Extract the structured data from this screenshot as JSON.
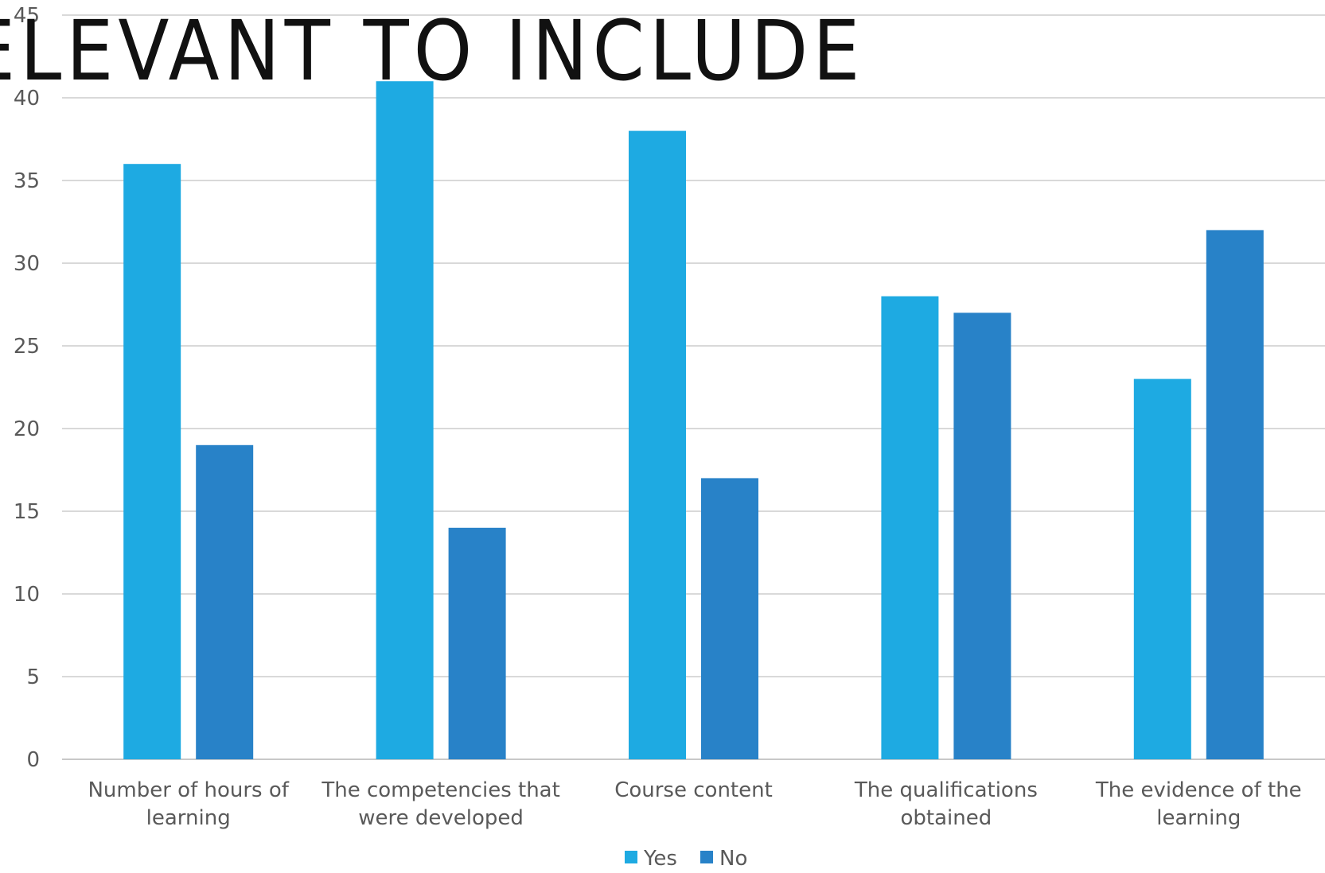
{
  "chart_data": {
    "type": "bar",
    "title": "ELEVANT TO INCLUDE",
    "categories": [
      [
        "Number of hours of",
        "learning"
      ],
      [
        "The competencies that",
        "were developed"
      ],
      [
        "Course content"
      ],
      [
        "The qualifications",
        "obtained"
      ],
      [
        "The evidence of the",
        "learning"
      ]
    ],
    "series": [
      {
        "name": "Yes",
        "color": "#1eaae2",
        "values": [
          36,
          41,
          38,
          28,
          23
        ]
      },
      {
        "name": "No",
        "color": "#2882c8",
        "values": [
          19,
          14,
          17,
          27,
          32
        ]
      }
    ],
    "ylim": [
      0,
      45
    ],
    "yticks": [
      0,
      5,
      10,
      15,
      20,
      25,
      30,
      35,
      40,
      45
    ],
    "grid": true,
    "legend_position": "bottom"
  }
}
